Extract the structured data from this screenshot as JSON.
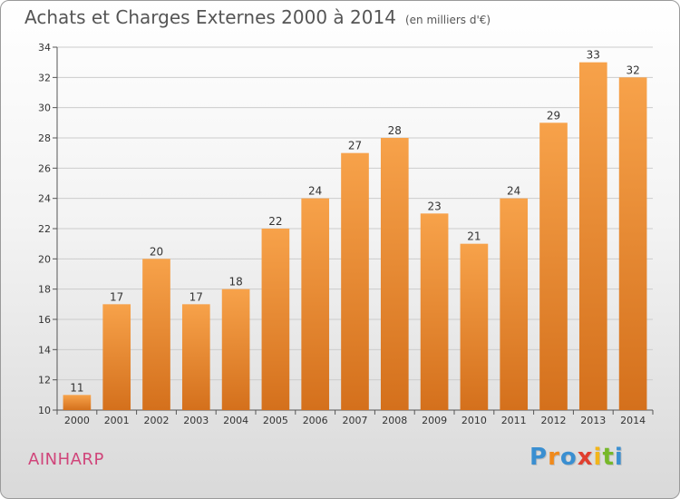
{
  "chart_data": {
    "type": "bar",
    "title": "Achats et Charges Externes 2000 à 2014",
    "subtitle": "(en milliers d'€)",
    "categories": [
      "2000",
      "2001",
      "2002",
      "2003",
      "2004",
      "2005",
      "2006",
      "2007",
      "2008",
      "2009",
      "2010",
      "2011",
      "2012",
      "2013",
      "2014"
    ],
    "values": [
      11,
      17,
      20,
      17,
      18,
      22,
      24,
      27,
      28,
      23,
      21,
      24,
      29,
      33,
      32
    ],
    "ylim": [
      10,
      34
    ],
    "yticks": [
      10,
      12,
      14,
      16,
      18,
      20,
      22,
      24,
      26,
      28,
      30,
      32,
      34
    ],
    "xlabel": "",
    "ylabel": "",
    "grid": true,
    "colors": {
      "bar_top": "#f7a24a",
      "bar_bottom": "#d4701c",
      "grid": "#cccccc",
      "label": "#d0457a"
    }
  },
  "footer": {
    "city": "AINHARP",
    "logo_letters": [
      "P",
      "r",
      "o",
      "x",
      "i",
      "t",
      "i"
    ],
    "logo_colors": [
      "#3a8fd1",
      "#f08a1c",
      "#3a8fd1",
      "#e03f2f",
      "#f2b51a",
      "#77b82a",
      "#3a8fd1"
    ]
  }
}
